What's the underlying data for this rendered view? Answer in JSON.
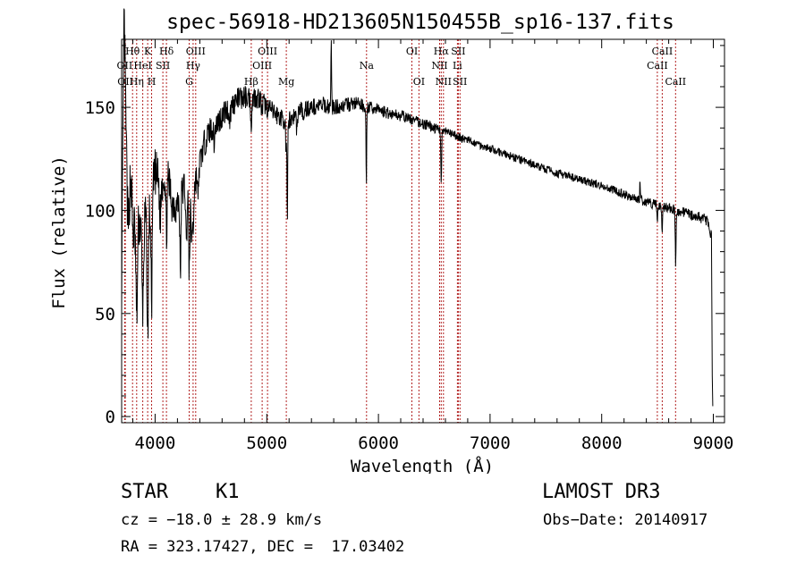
{
  "chart_data": {
    "type": "line",
    "title": "spec-56918-HD213605N150455B_sp16-137.fits",
    "xlabel": "Wavelength (Å)",
    "ylabel": "Flux (relative)",
    "xlim": [
      3700,
      9100
    ],
    "ylim": [
      -3,
      183
    ],
    "x_ticks": [
      4000,
      5000,
      6000,
      7000,
      8000,
      9000
    ],
    "y_ticks": [
      0,
      50,
      100,
      150
    ],
    "line_color": "#000000",
    "marker_color": "#b22222",
    "continuum": [
      [
        3700,
        65
      ],
      [
        3720,
        175
      ],
      [
        3735,
        150
      ],
      [
        3750,
        118
      ],
      [
        3790,
        118
      ],
      [
        3820,
        92
      ],
      [
        3850,
        95
      ],
      [
        3880,
        92
      ],
      [
        3920,
        95
      ],
      [
        3950,
        98
      ],
      [
        4000,
        118
      ],
      [
        4050,
        112
      ],
      [
        4100,
        122
      ],
      [
        4150,
        104
      ],
      [
        4200,
        102
      ],
      [
        4260,
        112
      ],
      [
        4300,
        115
      ],
      [
        4340,
        110
      ],
      [
        4380,
        118
      ],
      [
        4420,
        128
      ],
      [
        4450,
        134
      ],
      [
        4500,
        140
      ],
      [
        4550,
        142
      ],
      [
        4600,
        146
      ],
      [
        4650,
        149
      ],
      [
        4700,
        152
      ],
      [
        4750,
        154
      ],
      [
        4800,
        155
      ],
      [
        4850,
        155
      ],
      [
        4900,
        155
      ],
      [
        4950,
        154
      ],
      [
        5000,
        150
      ],
      [
        5050,
        148
      ],
      [
        5100,
        146
      ],
      [
        5150,
        144
      ],
      [
        5200,
        144
      ],
      [
        5250,
        146
      ],
      [
        5300,
        149
      ],
      [
        5400,
        150
      ],
      [
        5500,
        151
      ],
      [
        5600,
        150
      ],
      [
        5700,
        151
      ],
      [
        5800,
        152
      ],
      [
        5900,
        150
      ],
      [
        6000,
        149
      ],
      [
        6100,
        147
      ],
      [
        6200,
        146
      ],
      [
        6300,
        144
      ],
      [
        6400,
        142
      ],
      [
        6500,
        140
      ],
      [
        6600,
        138
      ],
      [
        6700,
        136
      ],
      [
        6800,
        134
      ],
      [
        6900,
        132
      ],
      [
        7000,
        130
      ],
      [
        7200,
        126
      ],
      [
        7400,
        122
      ],
      [
        7600,
        118
      ],
      [
        7800,
        115
      ],
      [
        8000,
        112
      ],
      [
        8200,
        108
      ],
      [
        8400,
        104
      ],
      [
        8600,
        101
      ],
      [
        8800,
        98
      ],
      [
        8950,
        95
      ],
      [
        8980,
        88
      ]
    ],
    "features": [
      {
        "x": 3760,
        "depth": 25,
        "width": 12
      },
      {
        "x": 3800,
        "depth": 20,
        "width": 12
      },
      {
        "x": 3835,
        "depth": 45,
        "width": 10
      },
      {
        "x": 3889,
        "depth": 40,
        "width": 10
      },
      {
        "x": 3933,
        "depth": 60,
        "width": 8
      },
      {
        "x": 3968,
        "depth": 50,
        "width": 8
      },
      {
        "x": 4045,
        "depth": 15,
        "width": 10
      },
      {
        "x": 4101,
        "depth": 30,
        "width": 10
      },
      {
        "x": 4226,
        "depth": 40,
        "width": 6
      },
      {
        "x": 4280,
        "depth": 30,
        "width": 8
      },
      {
        "x": 4305,
        "depth": 45,
        "width": 8
      },
      {
        "x": 4325,
        "depth": 25,
        "width": 8
      },
      {
        "x": 4340,
        "depth": 20,
        "width": 8
      },
      {
        "x": 4384,
        "depth": 15,
        "width": 6
      },
      {
        "x": 4528,
        "depth": 8,
        "width": 8
      },
      {
        "x": 4668,
        "depth": 6,
        "width": 10
      },
      {
        "x": 4861,
        "depth": 12,
        "width": 8
      },
      {
        "x": 4957,
        "depth": 6,
        "width": 8
      },
      {
        "x": 5172,
        "depth": 18,
        "width": 5
      },
      {
        "x": 5184,
        "depth": 50,
        "width": 5
      },
      {
        "x": 5270,
        "depth": 10,
        "width": 6
      },
      {
        "x": 5328,
        "depth": 8,
        "width": 6
      },
      {
        "x": 5892,
        "depth": 40,
        "width": 4
      },
      {
        "x": 6563,
        "depth": 25,
        "width": 5
      },
      {
        "x": 8498,
        "depth": 8,
        "width": 5
      },
      {
        "x": 8542,
        "depth": 14,
        "width": 5
      },
      {
        "x": 8662,
        "depth": 26,
        "width": 5
      }
    ],
    "spikes": [
      {
        "x": 5577,
        "height": 32,
        "width": 4
      },
      {
        "x": 8343,
        "height": 10,
        "width": 3
      },
      {
        "x": 3725,
        "height": 20,
        "width": 8
      }
    ],
    "noise_amplitude": [
      [
        3700,
        14
      ],
      [
        4000,
        12
      ],
      [
        4400,
        7
      ],
      [
        5000,
        5
      ],
      [
        6000,
        3
      ],
      [
        7000,
        2
      ],
      [
        8000,
        2
      ],
      [
        9000,
        3
      ]
    ],
    "line_markers": [
      {
        "x": 3727,
        "label": "OII",
        "row": 2
      },
      {
        "x": 3733,
        "label": "OII",
        "row": 3
      },
      {
        "x": 3798,
        "label": "Hθ",
        "row": 1
      },
      {
        "x": 3835,
        "label": "Hη",
        "row": 3
      },
      {
        "x": 3889,
        "label": "HeI",
        "row": 2
      },
      {
        "x": 3933,
        "label": "K",
        "row": 1
      },
      {
        "x": 3968,
        "label": "H",
        "row": 3
      },
      {
        "x": 4069,
        "label": "SII",
        "row": 2
      },
      {
        "x": 4101,
        "label": "Hδ",
        "row": 1
      },
      {
        "x": 4305,
        "label": "G",
        "row": 3
      },
      {
        "x": 4340,
        "label": "Hγ",
        "row": 2
      },
      {
        "x": 4363,
        "label": "OIII",
        "row": 1
      },
      {
        "x": 4861,
        "label": "Hβ",
        "row": 3
      },
      {
        "x": 4959,
        "label": "OIII",
        "row": 2
      },
      {
        "x": 5007,
        "label": "OIII",
        "row": 1
      },
      {
        "x": 5175,
        "label": "Mg",
        "row": 3
      },
      {
        "x": 5894,
        "label": "Na",
        "row": 2
      },
      {
        "x": 6300,
        "label": "OI",
        "row": 1
      },
      {
        "x": 6363,
        "label": "OI",
        "row": 3
      },
      {
        "x": 6548,
        "label": "NII",
        "row": 2
      },
      {
        "x": 6563,
        "label": "Hα",
        "row": 1
      },
      {
        "x": 6583,
        "label": "NII",
        "row": 3
      },
      {
        "x": 6708,
        "label": "Li",
        "row": 2
      },
      {
        "x": 6716,
        "label": "SII",
        "row": 1
      },
      {
        "x": 6731,
        "label": "SII",
        "row": 3
      },
      {
        "x": 8498,
        "label": "CaII",
        "row": 2
      },
      {
        "x": 8542,
        "label": "CaII",
        "row": 1
      },
      {
        "x": 8662,
        "label": "CaII",
        "row": 3
      }
    ]
  },
  "info": {
    "object_class": "STAR",
    "subclass": "K1",
    "survey": "LAMOST DR3",
    "cz": "cz = −18.0 ± 28.9 km/s",
    "obs_date": "Obs−Date: 20140917",
    "coords": "RA = 323.17427, DEC =  17.03402"
  }
}
